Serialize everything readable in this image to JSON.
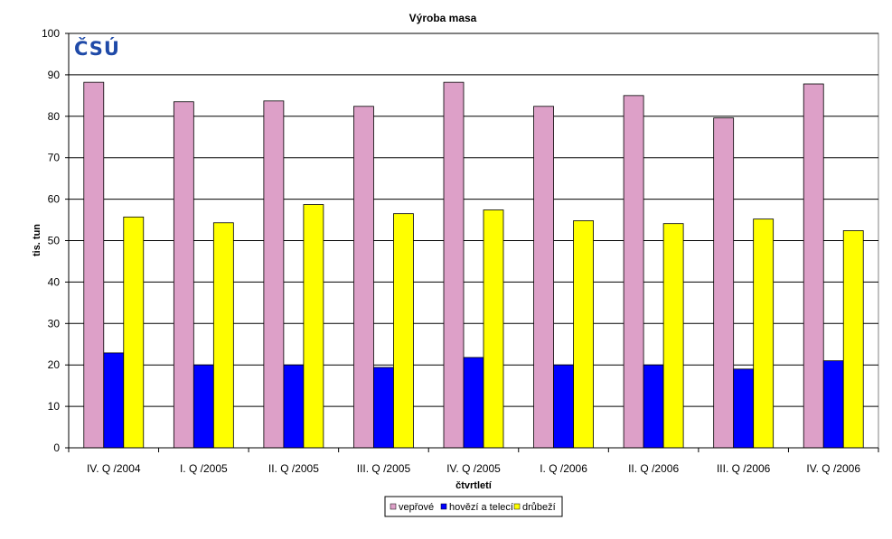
{
  "chart_data": {
    "type": "bar",
    "title": "Výroba masa",
    "xlabel": "čtvrtletí",
    "ylabel": "tis. tun",
    "ylim": [
      0,
      100
    ],
    "yticks": [
      0,
      10,
      20,
      30,
      40,
      50,
      60,
      70,
      80,
      90,
      100
    ],
    "grid": true,
    "legend_position": "bottom",
    "categories": [
      "IV. Q /2004",
      "I. Q /2005",
      "II. Q /2005",
      "III. Q /2005",
      "IV. Q /2005",
      "I. Q /2006",
      "II. Q /2006",
      "III. Q /2006",
      "IV. Q /2006"
    ],
    "series": [
      {
        "name": "vepřové",
        "color": "#dda0c8",
        "values": [
          88.2,
          83.5,
          83.7,
          82.4,
          88.2,
          82.4,
          85.0,
          79.6,
          87.8
        ]
      },
      {
        "name": "hovězí a telecí",
        "color": "#0000ff",
        "values": [
          22.9,
          20.0,
          20.0,
          19.4,
          21.8,
          20.0,
          20.0,
          19.0,
          21.0
        ]
      },
      {
        "name": "drůbeží",
        "color": "#ffff00",
        "values": [
          55.7,
          54.3,
          58.7,
          56.5,
          57.4,
          54.8,
          54.1,
          55.2,
          52.4
        ]
      }
    ]
  },
  "logo": {
    "text": "ČSÚ"
  }
}
